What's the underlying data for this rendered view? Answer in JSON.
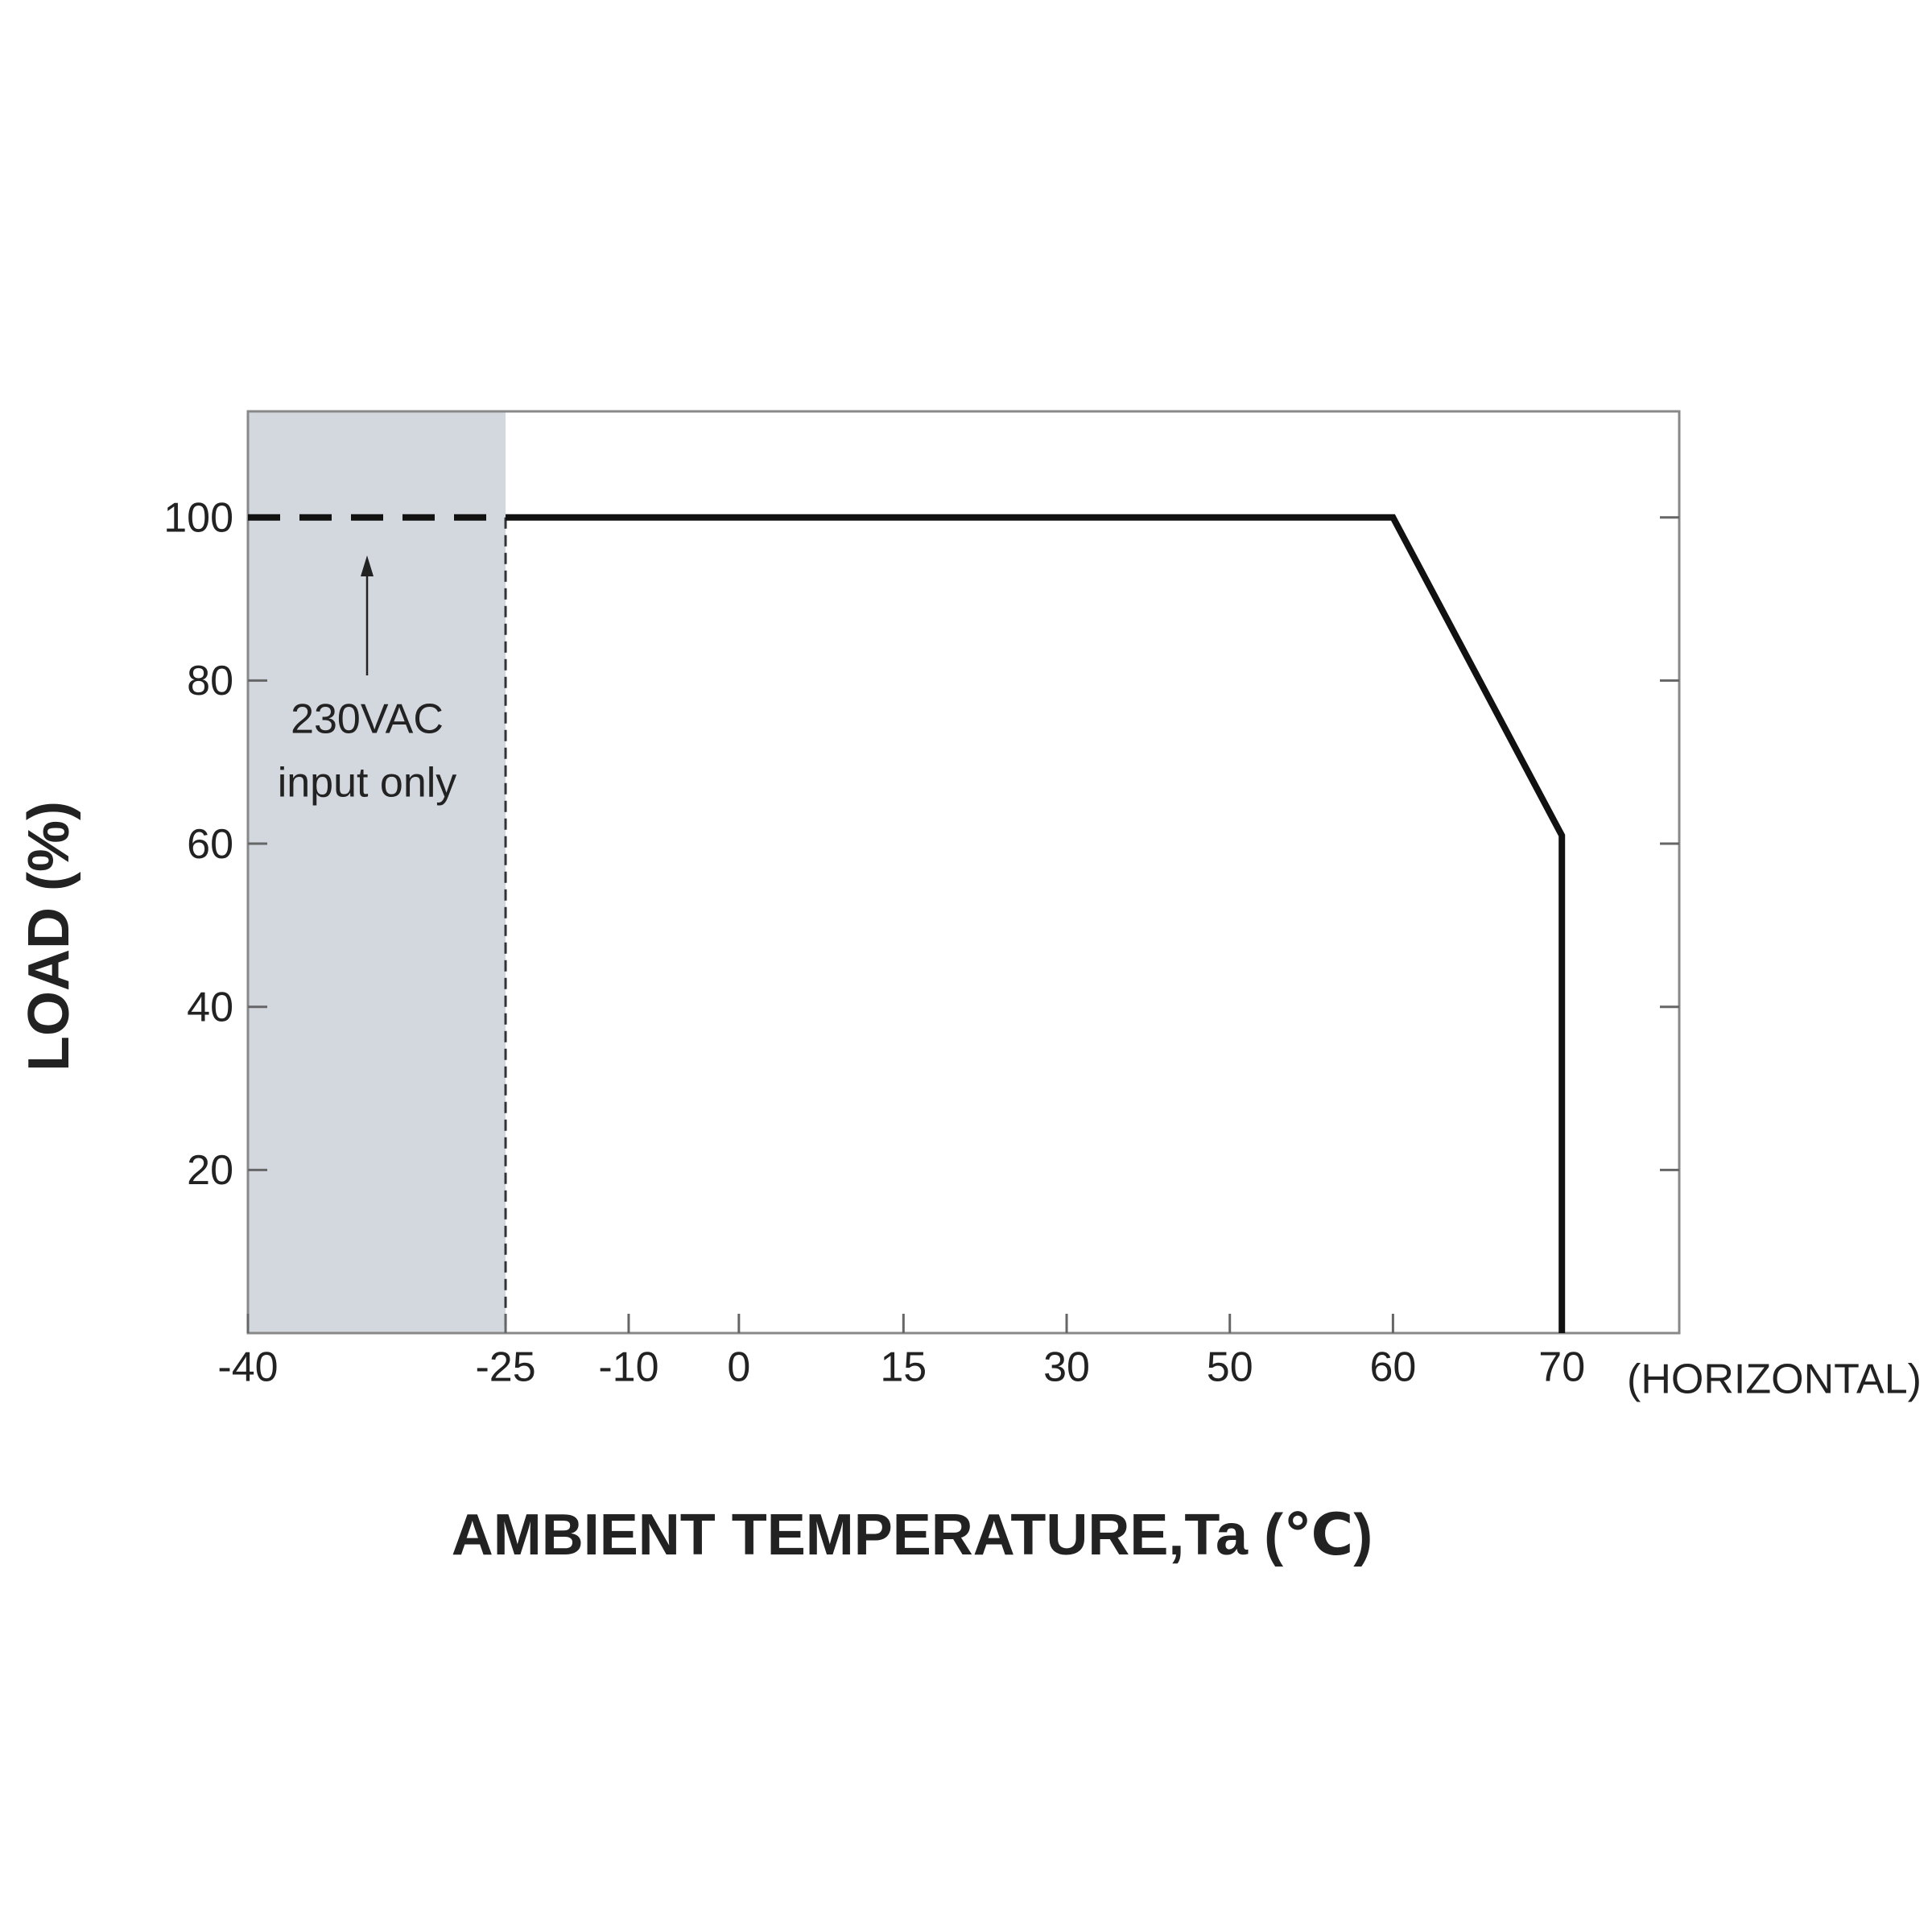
{
  "chart_data": {
    "type": "line",
    "x_label": "AMBIENT TEMPERATURE,Ta (℃)",
    "y_label": "LOAD (%)",
    "axis_note": "(HORIZONTAL)",
    "annotation": [
      "230VAC",
      "input only"
    ],
    "shaded_region": {
      "x": [
        -40,
        -25
      ],
      "color": "#d3d8df"
    },
    "series": [
      {
        "x": [
          -40,
          -25
        ],
        "values": [
          100,
          100
        ],
        "color": "#111111",
        "style": "dashed"
      },
      {
        "x": [
          -25,
          60,
          70,
          70
        ],
        "values": [
          100,
          100,
          61,
          0
        ],
        "color": "#111111",
        "style": "solid"
      }
    ],
    "xlim": [
      -40,
      77
    ],
    "xticks": [
      -40,
      -25,
      -10,
      0,
      15,
      30,
      50,
      60,
      70
    ],
    "ylim": [
      0,
      113
    ],
    "yticks": [
      20,
      40,
      60,
      80,
      100
    ]
  }
}
